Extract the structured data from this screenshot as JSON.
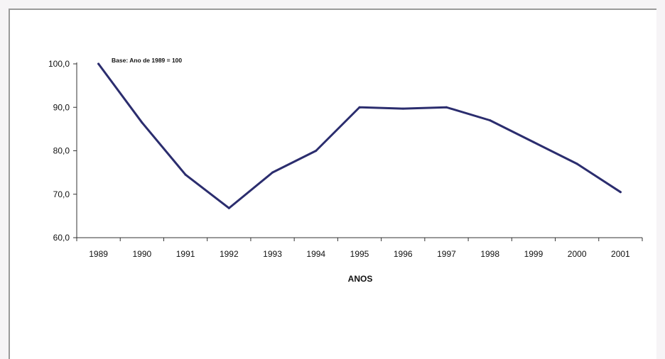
{
  "chart_data": {
    "type": "line",
    "title": "",
    "annotation": "Base: Ano de 1989 = 100",
    "xlabel": "ANOS",
    "ylabel": "",
    "ylim": [
      60,
      100
    ],
    "yticks": [
      "100,0",
      "90,0",
      "80,0",
      "70,0",
      "60,0"
    ],
    "ytick_values": [
      100,
      90,
      80,
      70,
      60
    ],
    "categories": [
      "1989",
      "1990",
      "1991",
      "1992",
      "1993",
      "1994",
      "1995",
      "1996",
      "1997",
      "1998",
      "1999",
      "2000",
      "2001"
    ],
    "series": [
      {
        "values": [
          100.0,
          86.5,
          74.5,
          66.8,
          75.0,
          80.0,
          90.0,
          89.7,
          90.0,
          87.0,
          82.0,
          77.0,
          70.5
        ]
      }
    ],
    "line_color": "#2b2d6e",
    "grid": false,
    "legend": "none"
  }
}
